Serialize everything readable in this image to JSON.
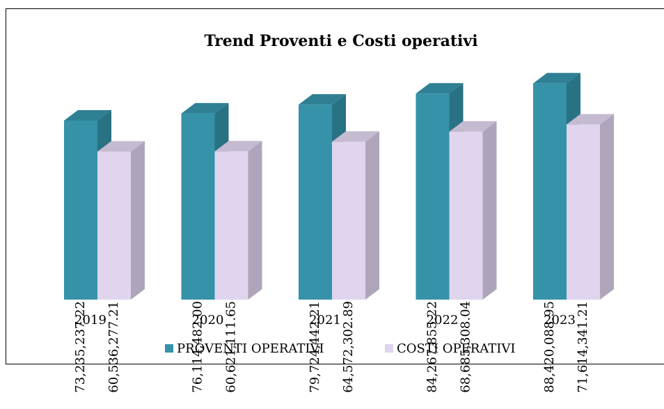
{
  "chart_data": {
    "type": "bar3d",
    "title": "Trend Proventi e Costi operativi",
    "categories": [
      "2019",
      "2020",
      "2021",
      "2022",
      "2023"
    ],
    "series": [
      {
        "name": "PROVENTI OPERATIVI",
        "color": "#3592a8",
        "values": [
          73235237.22,
          76114482.0,
          79724442.21,
          84267855.22,
          88420088.95
        ],
        "value_labels": [
          "73,235,237.22",
          "76,114,482.00",
          "79,724,442.21",
          "84,267,855.22",
          "88,420,088.95"
        ]
      },
      {
        "name": "COSTI OPERATIVI",
        "color": "#e0d4ee",
        "values": [
          60536277.21,
          60621111.65,
          64572302.89,
          68685308.04,
          71614341.21
        ],
        "value_labels": [
          "60,536,277.21",
          "60,621,111.65",
          "64,572,302.89",
          "68,685,308.04",
          "71,614,341.21"
        ]
      }
    ],
    "ylim": [
      0,
      100000000
    ],
    "legend": "bottom"
  }
}
